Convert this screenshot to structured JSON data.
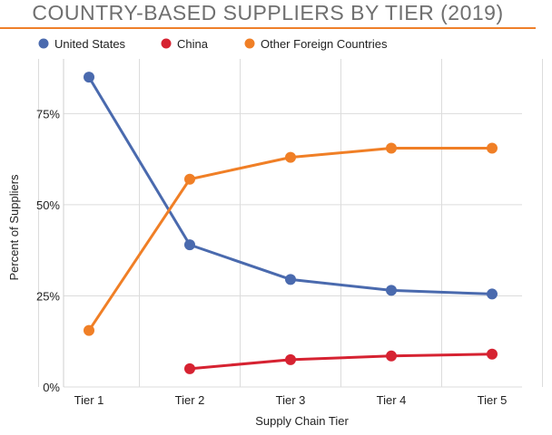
{
  "chart_data": {
    "type": "line",
    "title": "COUNTRY-BASED SUPPLIERS BY TIER (2019)",
    "categories": [
      "Tier 1",
      "Tier 2",
      "Tier 3",
      "Tier 4",
      "Tier 5"
    ],
    "xlabel": "Supply Chain Tier",
    "ylabel": "Percent of Suppliers",
    "ylim": [
      0,
      90
    ],
    "yticks": [
      0,
      25,
      50,
      75
    ],
    "ytick_labels": [
      "0%",
      "25%",
      "50%",
      "75%"
    ],
    "grid": true,
    "legend_position": "top",
    "series": [
      {
        "name": "United States",
        "color": "#4a6aae",
        "values": [
          85,
          39,
          29.5,
          26.5,
          25.5
        ]
      },
      {
        "name": "China",
        "color": "#d62231",
        "values": [
          null,
          5,
          7.5,
          8.5,
          9
        ]
      },
      {
        "name": "Other Foreign Countries",
        "color": "#f07f26",
        "values": [
          15.5,
          57,
          63,
          65.5,
          65.5
        ]
      }
    ]
  }
}
